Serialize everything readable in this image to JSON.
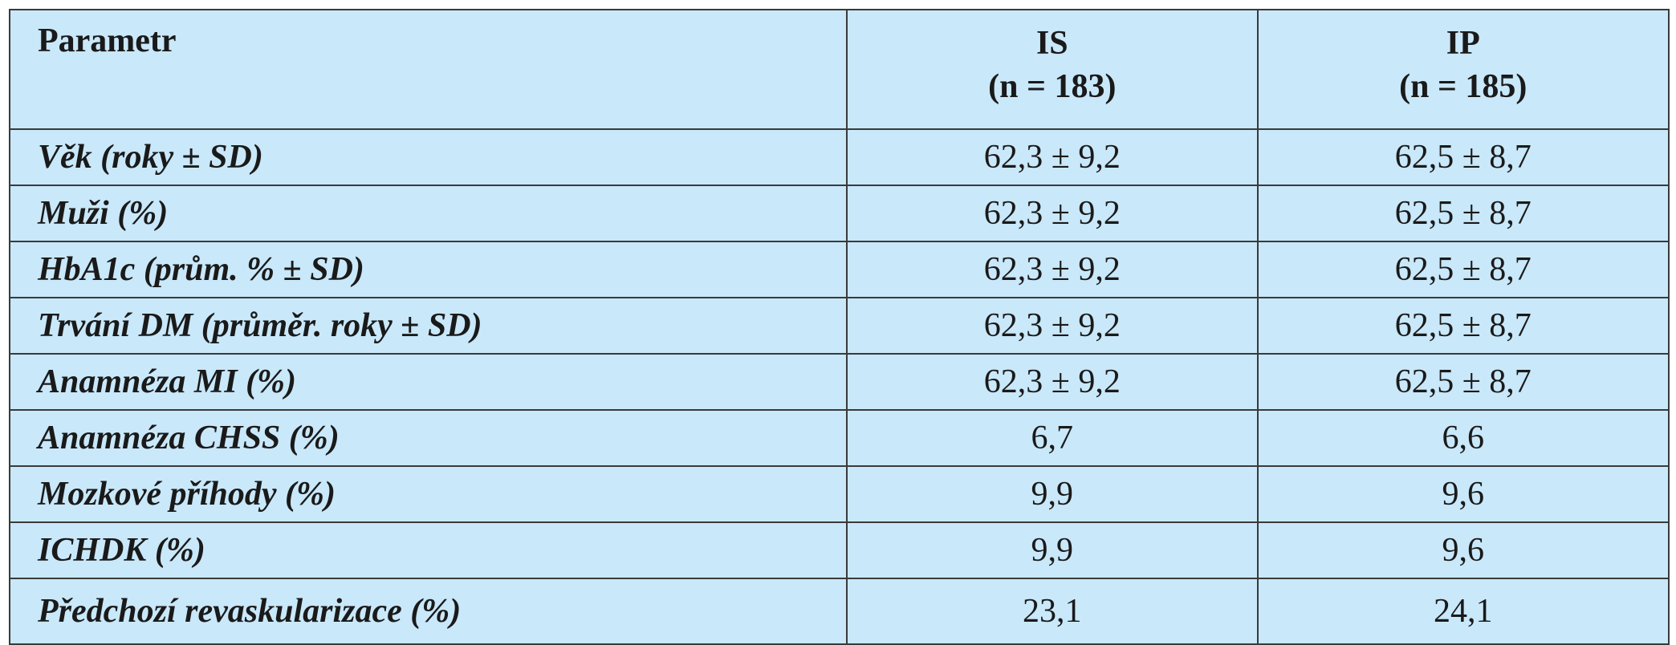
{
  "table": {
    "header": [
      "Parametr",
      [
        "IS",
        "(n = 183)"
      ],
      [
        "IP",
        "(n = 185)"
      ]
    ],
    "rows": [
      [
        "Věk (roky ± SD)",
        "62,3 ± 9,2",
        "62,5 ± 8,7"
      ],
      [
        "Muži (%)",
        "62,3 ± 9,2",
        "62,5 ± 8,7"
      ],
      [
        "HbA1c (prům. % ± SD)",
        "62,3 ± 9,2",
        "62,5 ± 8,7"
      ],
      [
        "Trvání DM (průměr. roky ± SD)",
        "62,3 ± 9,2",
        "62,5 ± 8,7"
      ],
      [
        "Anamnéza MI (%)",
        "62,3 ± 9,2",
        "62,5 ± 8,7"
      ],
      [
        "Anamnéza CHSS (%)",
        "6,7",
        "6,6"
      ],
      [
        "Mozkové příhody (%)",
        "9,9",
        "9,6"
      ],
      [
        "ICHDK (%)",
        "9,9",
        "9,6"
      ],
      [
        "Předchozí revaskularizace (%)",
        "23,1",
        "24,1"
      ]
    ]
  }
}
